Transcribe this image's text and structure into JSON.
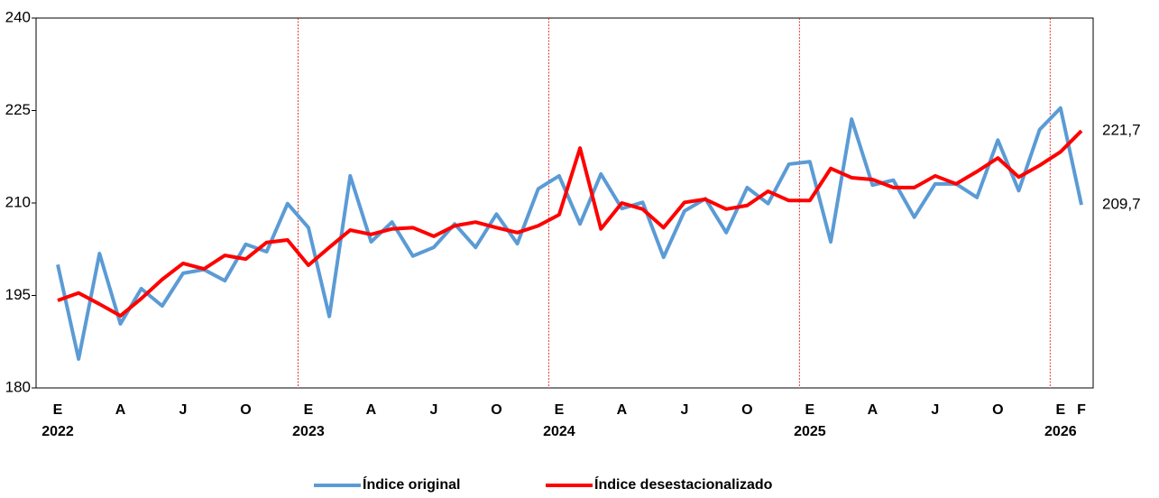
{
  "chart_data": {
    "type": "line",
    "categories": [
      "E",
      null,
      null,
      "A",
      null,
      null,
      "J",
      null,
      null,
      "O",
      null,
      null,
      "E",
      null,
      null,
      "A",
      null,
      null,
      "J",
      null,
      null,
      "O",
      null,
      null,
      "E",
      null,
      null,
      "A",
      null,
      null,
      "J",
      null,
      null,
      "O",
      null,
      null,
      "E",
      null,
      null,
      "A",
      null,
      null,
      "J",
      null,
      null,
      "O",
      null,
      null,
      "E",
      "F"
    ],
    "years": [
      "2022",
      null,
      null,
      null,
      null,
      null,
      null,
      null,
      null,
      null,
      null,
      null,
      "2023",
      null,
      null,
      null,
      null,
      null,
      null,
      null,
      null,
      null,
      null,
      null,
      "2024",
      null,
      null,
      null,
      null,
      null,
      null,
      null,
      null,
      null,
      null,
      null,
      "2025",
      null,
      null,
      null,
      null,
      null,
      null,
      null,
      null,
      null,
      null,
      null,
      "2026",
      null
    ],
    "ylim": [
      180,
      240
    ],
    "yticks": [
      180,
      195,
      210,
      225,
      240
    ],
    "series": [
      {
        "name": "Índice original",
        "color": "#5b9bd5",
        "label_color": "#000000",
        "values": [
          200.0,
          184.7,
          201.8,
          190.4,
          196.1,
          193.3,
          198.6,
          199.2,
          197.4,
          203.3,
          202.1,
          209.9,
          206.0,
          191.6,
          214.4,
          203.7,
          206.9,
          201.4,
          202.8,
          206.6,
          202.8,
          208.2,
          203.4,
          212.3,
          214.4,
          206.6,
          214.7,
          209.1,
          210.1,
          201.2,
          208.7,
          210.7,
          205.2,
          212.5,
          209.9,
          216.3,
          216.7,
          203.7,
          223.6,
          212.9,
          213.7,
          207.7,
          213.1,
          213.1,
          210.9,
          220.2,
          212.0,
          221.9,
          225.4,
          209.7
        ],
        "value_labels": [
          null,
          null,
          null,
          null,
          null,
          null,
          null,
          null,
          null,
          null,
          null,
          null,
          null,
          null,
          null,
          null,
          null,
          null,
          null,
          null,
          null,
          null,
          null,
          null,
          null,
          null,
          null,
          null,
          null,
          null,
          null,
          null,
          null,
          null,
          null,
          null,
          null,
          null,
          null,
          null,
          null,
          null,
          null,
          null,
          null,
          null,
          null,
          null,
          null,
          "209,7"
        ]
      },
      {
        "name": "Índice desestacionalizado",
        "color": "#ff0000",
        "label_color": "#c00000",
        "values": [
          194.2,
          195.4,
          193.6,
          191.7,
          194.5,
          197.6,
          200.2,
          199.3,
          201.5,
          200.9,
          203.6,
          204.0,
          199.9,
          202.8,
          205.6,
          204.9,
          205.8,
          206.0,
          204.6,
          206.3,
          206.9,
          206.0,
          205.2,
          206.3,
          208.1,
          218.9,
          205.8,
          210.0,
          209.0,
          206.0,
          210.1,
          210.6,
          209.0,
          209.6,
          211.9,
          210.4,
          210.4,
          215.6,
          214.1,
          213.8,
          212.5,
          212.5,
          214.4,
          213.1,
          215.1,
          217.3,
          214.2,
          216.1,
          218.3,
          221.7
        ],
        "value_labels": [
          null,
          null,
          null,
          null,
          null,
          null,
          null,
          null,
          null,
          null,
          null,
          null,
          null,
          null,
          null,
          null,
          null,
          null,
          null,
          null,
          null,
          null,
          null,
          null,
          null,
          null,
          null,
          null,
          null,
          null,
          null,
          null,
          null,
          null,
          null,
          null,
          null,
          null,
          null,
          null,
          null,
          null,
          null,
          null,
          null,
          null,
          null,
          null,
          null,
          "221,7"
        ]
      }
    ],
    "legend": "bottom"
  }
}
